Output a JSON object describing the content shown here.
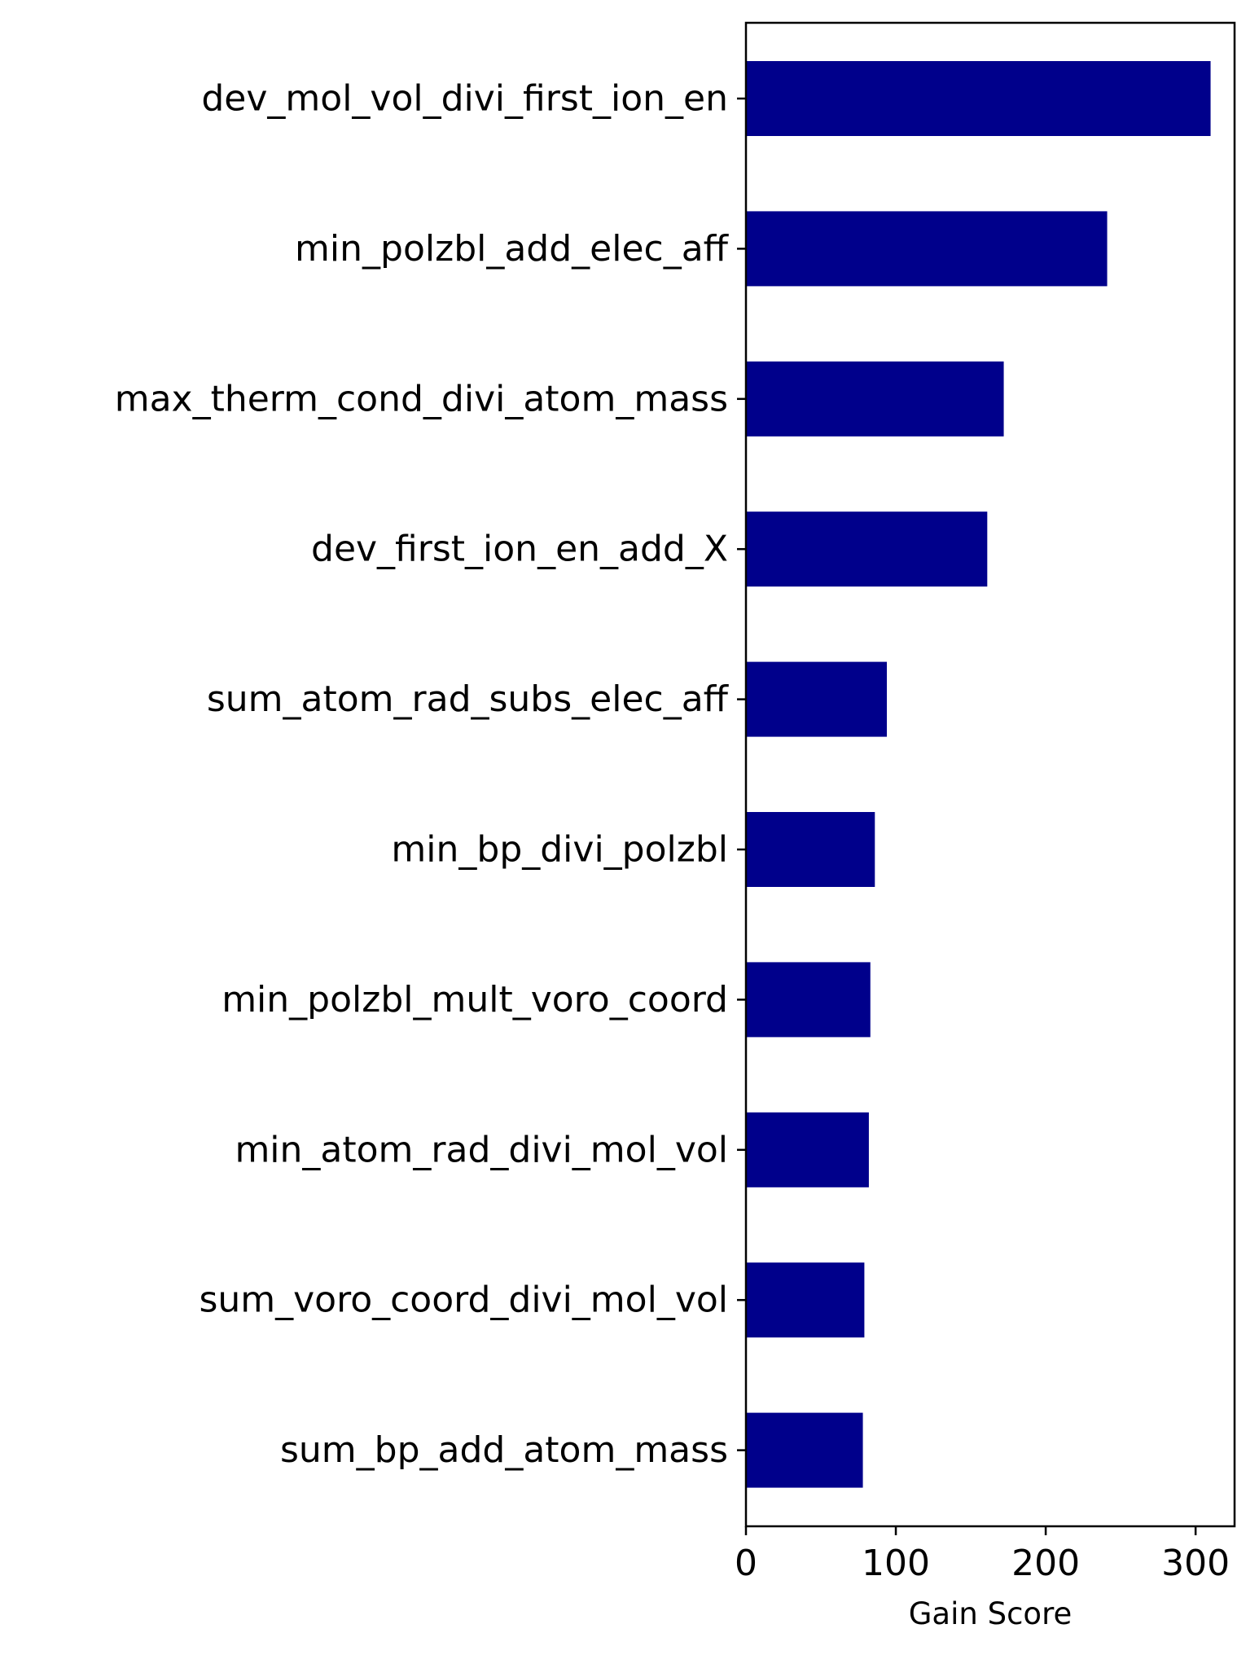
{
  "chart_data": {
    "type": "bar",
    "orientation": "horizontal",
    "categories": [
      "dev_mol_vol_divi_first_ion_en",
      "min_polzbl_add_elec_aff",
      "max_therm_cond_divi_atom_mass",
      "dev_first_ion_en_add_X",
      "sum_atom_rad_subs_elec_aff",
      "min_bp_divi_polzbl",
      "min_polzbl_mult_voro_coord",
      "min_atom_rad_divi_mol_vol",
      "sum_voro_coord_divi_mol_vol",
      "sum_bp_add_atom_mass"
    ],
    "values": [
      310,
      241,
      172,
      161,
      94,
      86,
      83,
      82,
      79,
      78
    ],
    "xlabel": "Gain Score",
    "ylabel": "",
    "xlim": [
      0,
      326
    ],
    "xticks": [
      0,
      100,
      200,
      300
    ],
    "xtick_labels": [
      "0",
      "100",
      "200",
      "300"
    ],
    "bar_color": "#00008b",
    "grid": false,
    "legend": "none"
  }
}
